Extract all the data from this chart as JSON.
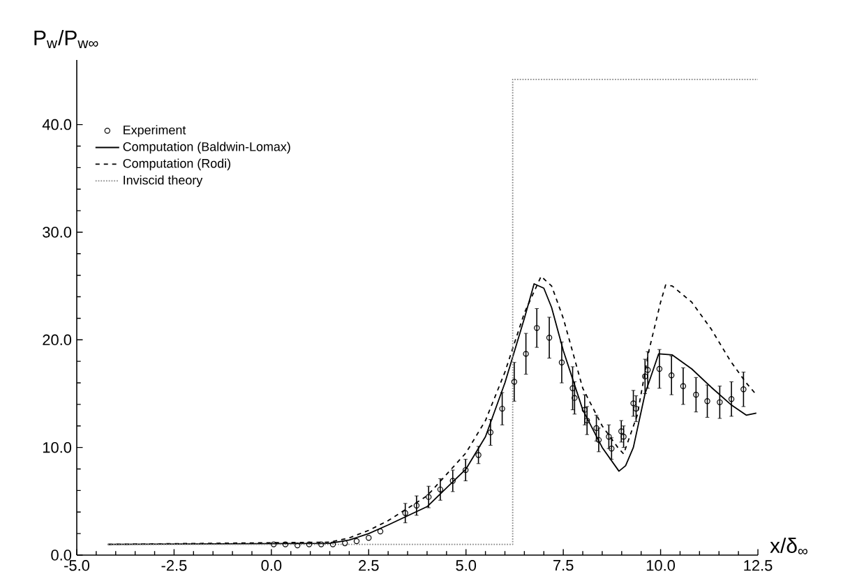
{
  "chart_data": {
    "type": "line",
    "xlabel": "x/δ$_{∞}$",
    "ylabel": "P$_{w}$/P$_{w∞}$",
    "xlim": [
      -5,
      12.5
    ],
    "ylim": [
      0,
      46
    ],
    "xticks": [
      {
        "value": -5,
        "label": "-5.0"
      },
      {
        "value": -2.5,
        "label": "-2.5"
      },
      {
        "value": 0,
        "label": "0.0"
      },
      {
        "value": 2.5,
        "label": "2.5"
      },
      {
        "value": 5,
        "label": "5.0"
      },
      {
        "value": 7.5,
        "label": "7.5"
      },
      {
        "value": 10,
        "label": "10.0"
      },
      {
        "value": 12.5,
        "label": "12.5"
      }
    ],
    "yticks": [
      {
        "value": 0,
        "label": "0.0"
      },
      {
        "value": 10,
        "label": "10.0"
      },
      {
        "value": 20,
        "label": "20.0"
      },
      {
        "value": 30,
        "label": "30.0"
      },
      {
        "value": 40,
        "label": "40.0"
      }
    ],
    "legend": "top left",
    "series": [
      {
        "name": "Experiment",
        "type": "scatter",
        "marker": "circle",
        "color": "#000000",
        "x": [
          0.06,
          0.36,
          0.67,
          0.97,
          1.28,
          1.58,
          1.89,
          2.19,
          2.5,
          2.8,
          3.44,
          3.73,
          4.04,
          4.34,
          4.66,
          4.99,
          5.32,
          5.63,
          5.93,
          6.24,
          6.54,
          6.82,
          7.14,
          7.46,
          7.74,
          7.79,
          8.05,
          8.11,
          8.35,
          8.41,
          8.67,
          8.74,
          8.99,
          9.05,
          9.3,
          9.37,
          9.6,
          9.67,
          9.97,
          10.28,
          10.58,
          10.91,
          11.2,
          11.52,
          11.82,
          12.13
        ],
        "values": [
          1.0,
          1.0,
          0.9,
          1.0,
          1.0,
          1.0,
          1.1,
          1.3,
          1.6,
          2.2,
          3.9,
          4.6,
          5.4,
          6.1,
          6.9,
          7.9,
          9.3,
          11.4,
          13.6,
          16.1,
          18.7,
          21.1,
          20.2,
          17.9,
          15.5,
          14.6,
          13.5,
          12.5,
          11.8,
          10.7,
          11.0,
          9.9,
          11.5,
          11.0,
          14.1,
          13.6,
          16.6,
          17.2,
          17.3,
          16.7,
          15.7,
          14.9,
          14.3,
          14.2,
          14.5,
          15.4
        ],
        "errors": [
          null,
          null,
          null,
          null,
          null,
          null,
          null,
          null,
          null,
          null,
          0.9,
          0.9,
          1.0,
          1.0,
          1.0,
          1.0,
          0.8,
          1.2,
          1.5,
          1.8,
          1.9,
          1.8,
          1.9,
          1.9,
          2.0,
          1.5,
          1.4,
          1.3,
          1.2,
          1.1,
          1.1,
          1.0,
          1.0,
          1.0,
          1.2,
          1.2,
          1.6,
          1.7,
          1.8,
          1.8,
          1.7,
          1.6,
          1.5,
          1.5,
          1.6,
          1.6
        ]
      },
      {
        "name": "Computation (Baldwin-Lomax)",
        "type": "line",
        "line_style": "solid",
        "color": "#000000",
        "x": [
          -4.2,
          1.5,
          2.0,
          2.5,
          3.0,
          4.0,
          5.0,
          5.5,
          6.0,
          6.5,
          6.75,
          7.0,
          7.2,
          7.5,
          8.0,
          8.5,
          8.93,
          9.1,
          9.3,
          9.6,
          9.95,
          10.3,
          10.8,
          11.3,
          11.8,
          12.2,
          12.46
        ],
        "values": [
          1.0,
          1.1,
          1.4,
          2.0,
          2.8,
          4.5,
          8.0,
          11.0,
          16.0,
          22.0,
          25.2,
          24.8,
          23.0,
          19.0,
          13.5,
          10.0,
          7.8,
          8.3,
          10.0,
          15.0,
          18.7,
          18.6,
          17.3,
          15.6,
          14.0,
          13.0,
          13.2
        ]
      },
      {
        "name": "Computation (Rodi)",
        "type": "line",
        "line_style": "dashed",
        "color": "#000000",
        "x": [
          -4.2,
          1.5,
          2.0,
          2.5,
          3.0,
          4.0,
          5.0,
          5.5,
          6.0,
          6.5,
          6.93,
          7.2,
          7.5,
          8.0,
          8.5,
          8.9,
          9.05,
          9.4,
          9.7,
          10.0,
          10.13,
          10.3,
          10.8,
          11.3,
          11.8,
          12.2,
          12.46
        ],
        "values": [
          1.0,
          1.2,
          1.6,
          2.3,
          3.2,
          5.5,
          9.5,
          12.5,
          17.0,
          22.5,
          25.9,
          25.0,
          22.0,
          15.5,
          12.0,
          10.0,
          9.4,
          13.0,
          19.0,
          23.5,
          25.1,
          25.0,
          23.5,
          21.0,
          18.0,
          16.0,
          14.9
        ]
      },
      {
        "name": "Inviscid theory",
        "type": "line",
        "line_style": "dotted",
        "color": "#888888",
        "x": [
          -4.2,
          6.2,
          6.2,
          12.5
        ],
        "values": [
          1.0,
          1.0,
          44.2,
          44.2
        ]
      }
    ]
  }
}
